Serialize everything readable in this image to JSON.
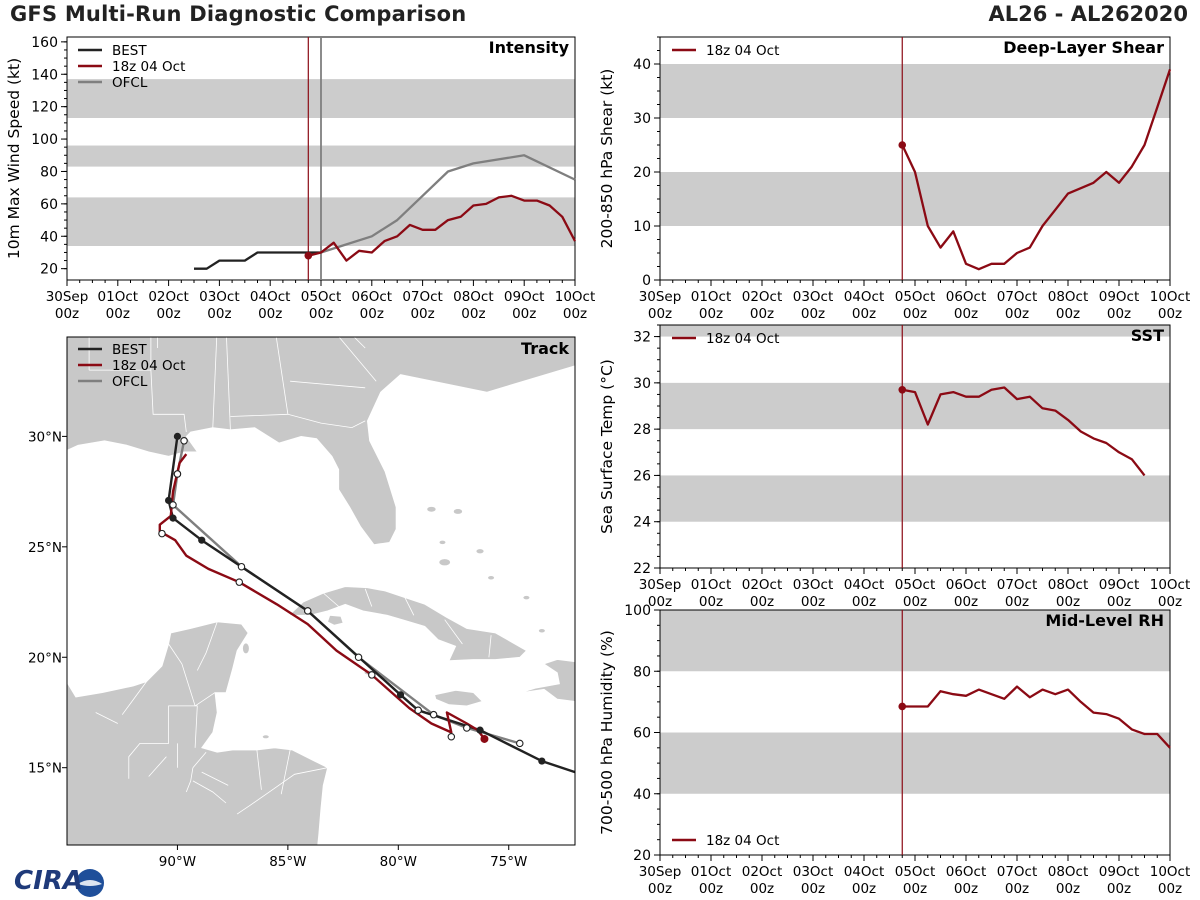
{
  "header": {
    "title": "GFS Multi-Run Diagnostic Comparison",
    "storm": "AL26 - AL262020"
  },
  "logo": {
    "text": "CIRA"
  },
  "colors": {
    "best": "#222222",
    "run": "#8b0a14",
    "ofcl": "#7f7f7f",
    "band": "#cccccc",
    "land": "#c8c8c8",
    "water": "#ffffff"
  },
  "time_axis": {
    "ticks": [
      {
        "day": 0,
        "label1": "30Sep",
        "label2": "00z"
      },
      {
        "day": 1,
        "label1": "01Oct",
        "label2": "00z"
      },
      {
        "day": 2,
        "label1": "02Oct",
        "label2": "00z"
      },
      {
        "day": 3,
        "label1": "03Oct",
        "label2": "00z"
      },
      {
        "day": 4,
        "label1": "04Oct",
        "label2": "00z"
      },
      {
        "day": 5,
        "label1": "05Oct",
        "label2": "00z"
      },
      {
        "day": 6,
        "label1": "06Oct",
        "label2": "00z"
      },
      {
        "day": 7,
        "label1": "07Oct",
        "label2": "00z"
      },
      {
        "day": 8,
        "label1": "08Oct",
        "label2": "00z"
      },
      {
        "day": 9,
        "label1": "09Oct",
        "label2": "00z"
      },
      {
        "day": 10,
        "label1": "10Oct",
        "label2": "00z"
      }
    ],
    "init_day": 4.75,
    "ofcl_day": 5.0
  },
  "chart_data": [
    {
      "id": "intensity",
      "type": "line",
      "title": "Intensity",
      "ylabel": "10m Max Wind Speed (kt)",
      "ylim": [
        13,
        163
      ],
      "yticks": [
        20,
        40,
        60,
        80,
        100,
        120,
        140,
        160
      ],
      "bands": [
        [
          34,
          64
        ],
        [
          83,
          96
        ],
        [
          113,
          137
        ]
      ],
      "legend": [
        "BEST",
        "18z 04 Oct",
        "OFCL"
      ],
      "series": [
        {
          "name": "BEST",
          "x": [
            2.5,
            2.75,
            3.0,
            3.25,
            3.5,
            3.75,
            4.0,
            4.25,
            4.5,
            4.75,
            5.0
          ],
          "y": [
            20,
            20,
            25,
            25,
            25,
            30,
            30,
            30,
            30,
            30,
            30
          ]
        },
        {
          "name": "18z 04 Oct",
          "x": [
            4.75,
            5.0,
            5.25,
            5.5,
            5.75,
            6.0,
            6.25,
            6.5,
            6.75,
            7.0,
            7.25,
            7.5,
            7.75,
            8.0,
            8.25,
            8.5,
            8.75,
            9.0,
            9.25,
            9.5,
            9.75,
            10.0
          ],
          "y": [
            28,
            30,
            36,
            25,
            31,
            30,
            37,
            40,
            47,
            44,
            44,
            50,
            52,
            59,
            60,
            64,
            65,
            62,
            62,
            59,
            52,
            37
          ]
        },
        {
          "name": "OFCL",
          "x": [
            5.0,
            5.5,
            6.0,
            6.5,
            7.0,
            7.5,
            8.0,
            9.0,
            10.0
          ],
          "y": [
            30,
            35,
            40,
            50,
            65,
            80,
            85,
            90,
            75
          ]
        }
      ]
    },
    {
      "id": "shear",
      "type": "line",
      "title": "Deep-Layer Shear",
      "ylabel": "200-850 hPa Shear (kt)",
      "ylim": [
        0,
        45
      ],
      "yticks": [
        0,
        10,
        20,
        30,
        40
      ],
      "bands": [
        [
          10,
          20
        ],
        [
          30,
          40
        ]
      ],
      "legend": [
        "18z 04 Oct"
      ],
      "series": [
        {
          "name": "18z 04 Oct",
          "x": [
            4.75,
            5.0,
            5.25,
            5.5,
            5.75,
            6.0,
            6.25,
            6.5,
            6.75,
            7.0,
            7.25,
            7.5,
            7.75,
            8.0,
            8.25,
            8.5,
            8.75,
            9.0,
            9.25,
            9.5,
            9.75,
            10.0
          ],
          "y": [
            25,
            20,
            10,
            6,
            9,
            3,
            2,
            3,
            3,
            5,
            6,
            10,
            13,
            16,
            17,
            18,
            20,
            18,
            21,
            25,
            32,
            39
          ]
        }
      ]
    },
    {
      "id": "sst",
      "type": "line",
      "title": "SST",
      "ylabel": "Sea Surface Temp (°C)",
      "ylim": [
        22,
        32.5
      ],
      "yticks": [
        22,
        24,
        26,
        28,
        30,
        32
      ],
      "bands": [
        [
          24,
          26
        ],
        [
          28,
          30
        ],
        [
          32,
          34
        ]
      ],
      "legend": [
        "18z 04 Oct"
      ],
      "series": [
        {
          "name": "18z 04 Oct",
          "x": [
            4.75,
            5.0,
            5.25,
            5.5,
            5.75,
            6.0,
            6.25,
            6.5,
            6.75,
            7.0,
            7.25,
            7.5,
            7.75,
            8.0,
            8.25,
            8.5,
            8.75,
            9.0,
            9.25,
            9.5
          ],
          "y": [
            29.7,
            29.6,
            28.2,
            29.5,
            29.6,
            29.4,
            29.4,
            29.7,
            29.8,
            29.3,
            29.4,
            28.9,
            28.8,
            28.4,
            27.9,
            27.6,
            27.4,
            27.0,
            26.7,
            26.0
          ]
        }
      ]
    },
    {
      "id": "rh",
      "type": "line",
      "title": "Mid-Level RH",
      "ylabel": "700-500 hPa Humidity (%)",
      "ylim": [
        20,
        100
      ],
      "yticks": [
        20,
        40,
        60,
        80,
        100
      ],
      "bands": [
        [
          40,
          60
        ],
        [
          80,
          100
        ]
      ],
      "legend": [
        "18z 04 Oct"
      ],
      "series": [
        {
          "name": "18z 04 Oct",
          "x": [
            4.75,
            5.0,
            5.25,
            5.5,
            5.75,
            6.0,
            6.25,
            6.5,
            6.75,
            7.0,
            7.25,
            7.5,
            7.75,
            8.0,
            8.25,
            8.5,
            8.75,
            9.0,
            9.25,
            9.5,
            9.75,
            10.0
          ],
          "y": [
            68.5,
            68.5,
            68.5,
            73.5,
            72.5,
            72,
            74,
            72.5,
            71,
            75,
            71.5,
            74,
            72.5,
            74,
            70,
            66.5,
            66,
            64.5,
            61,
            59.5,
            59.5,
            55
          ]
        }
      ]
    },
    {
      "id": "track",
      "type": "map",
      "title": "Track",
      "legend": [
        "BEST",
        "18z 04 Oct",
        "OFCL"
      ],
      "lon_range": [
        -95,
        -72
      ],
      "lat_range": [
        11.5,
        34.5
      ],
      "xticks": [
        {
          "v": -90,
          "label": "90°W"
        },
        {
          "v": -85,
          "label": "85°W"
        },
        {
          "v": -80,
          "label": "80°W"
        },
        {
          "v": -75,
          "label": "75°W"
        }
      ],
      "yticks": [
        {
          "v": 15,
          "label": "15°N"
        },
        {
          "v": 20,
          "label": "20°N"
        },
        {
          "v": 25,
          "label": "25°N"
        },
        {
          "v": 30,
          "label": "30°N"
        }
      ],
      "series": [
        {
          "name": "BEST",
          "lon": [
            -72,
            -73.5,
            -76.3,
            -79.1,
            -79.9,
            -84.1,
            -88.9,
            -90.2,
            -90.4,
            -90.0
          ],
          "lat": [
            14.8,
            15.3,
            16.7,
            17.6,
            18.3,
            22.1,
            25.3,
            26.3,
            27.1,
            30.0
          ],
          "markers": [
            -73.5,
            -76.3,
            -79.1,
            -79.9,
            -84.1,
            -88.9,
            -90.2,
            -90.4,
            -90.0
          ]
        },
        {
          "name": "18z 04 Oct",
          "lon": [
            -76.1,
            -76.4,
            -76.9,
            -77.8,
            -77.6,
            -78.5,
            -79.5,
            -81.2,
            -82.8,
            -84.1,
            -85.5,
            -87.2,
            -88.6,
            -89.6,
            -90.1,
            -90.8,
            -90.8,
            -90.3,
            -90.2,
            -89.9,
            -89.6
          ],
          "lat": [
            16.3,
            16.7,
            17.0,
            17.5,
            16.6,
            17.0,
            17.7,
            19.2,
            20.3,
            21.5,
            22.4,
            23.4,
            24.0,
            24.6,
            25.3,
            25.7,
            26.0,
            26.4,
            27.5,
            28.8,
            29.2
          ]
        },
        {
          "name": "OFCL",
          "lon": [
            -74.5,
            -76.9,
            -78.4,
            -81.8,
            -84.1,
            -87.1,
            -90.2,
            -90.0,
            -89.7
          ],
          "lat": [
            16.1,
            16.8,
            17.4,
            20.0,
            22.1,
            24.1,
            26.9,
            28.3,
            29.8
          ]
        }
      ]
    }
  ]
}
